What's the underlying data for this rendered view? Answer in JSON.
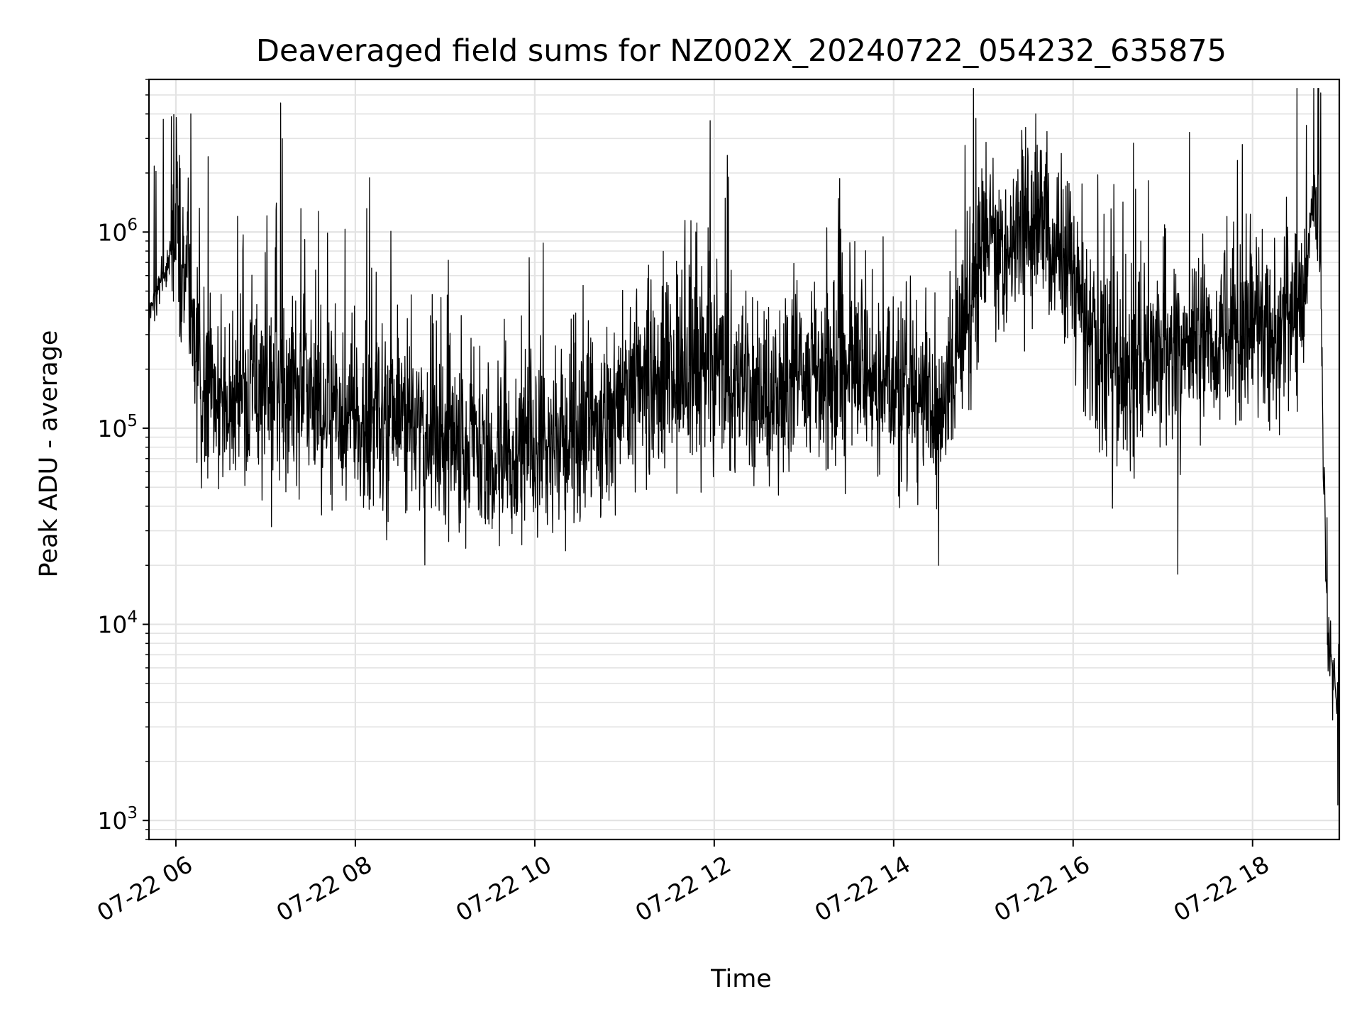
{
  "chart_data": {
    "type": "line",
    "title": "Deaveraged field sums for NZ002X_20240722_054232_635875",
    "xlabel": "Time",
    "ylabel": "Peak ADU - average",
    "x_scale": "time",
    "y_scale": "log",
    "xlim": [
      "2024-07-22T05:42:00",
      "2024-07-22T18:58:00"
    ],
    "ylim": [
      800,
      6000000
    ],
    "grid": true,
    "legend": "none",
    "line_color": "#000000",
    "x_ticks": [
      {
        "value": "2024-07-22T06:00:00",
        "label": "07-22 06"
      },
      {
        "value": "2024-07-22T08:00:00",
        "label": "07-22 08"
      },
      {
        "value": "2024-07-22T10:00:00",
        "label": "07-22 10"
      },
      {
        "value": "2024-07-22T12:00:00",
        "label": "07-22 12"
      },
      {
        "value": "2024-07-22T14:00:00",
        "label": "07-22 14"
      },
      {
        "value": "2024-07-22T16:00:00",
        "label": "07-22 16"
      },
      {
        "value": "2024-07-22T18:00:00",
        "label": "07-22 18"
      }
    ],
    "y_ticks": [
      {
        "value": 1000,
        "base": "10",
        "exp": "3"
      },
      {
        "value": 10000,
        "base": "10",
        "exp": "4"
      },
      {
        "value": 100000,
        "base": "10",
        "exp": "5"
      },
      {
        "value": 1000000,
        "base": "10",
        "exp": "6"
      }
    ],
    "series": [
      {
        "x": [
          "2024-07-22T05:42:00",
          "2024-07-22T05:50:00",
          "2024-07-22T05:55:00",
          "2024-07-22T06:00:00",
          "2024-07-22T06:05:00",
          "2024-07-22T06:10:00",
          "2024-07-22T06:15:00",
          "2024-07-22T06:20:00",
          "2024-07-22T06:30:00",
          "2024-07-22T06:45:00",
          "2024-07-22T07:00:00",
          "2024-07-22T07:20:00",
          "2024-07-22T07:40:00",
          "2024-07-22T08:00:00",
          "2024-07-22T08:30:00",
          "2024-07-22T09:00:00",
          "2024-07-22T09:30:00",
          "2024-07-22T10:00:00",
          "2024-07-22T10:30:00",
          "2024-07-22T11:00:00",
          "2024-07-22T11:30:00",
          "2024-07-22T12:00:00",
          "2024-07-22T12:30:00",
          "2024-07-22T13:00:00",
          "2024-07-22T13:30:00",
          "2024-07-22T14:00:00",
          "2024-07-22T14:30:00",
          "2024-07-22T14:50:00",
          "2024-07-22T15:00:00",
          "2024-07-22T15:20:00",
          "2024-07-22T15:40:00",
          "2024-07-22T16:00:00",
          "2024-07-22T16:15:00",
          "2024-07-22T16:30:00",
          "2024-07-22T16:45:00",
          "2024-07-22T17:00:00",
          "2024-07-22T17:30:00",
          "2024-07-22T18:00:00",
          "2024-07-22T18:20:00",
          "2024-07-22T18:35:00",
          "2024-07-22T18:40:00",
          "2024-07-22T18:45:00",
          "2024-07-22T18:48:00",
          "2024-07-22T18:50:00",
          "2024-07-22T18:53:00",
          "2024-07-22T18:56:00",
          "2024-07-22T18:58:00"
        ],
        "y": [
          400000,
          550000,
          700000,
          1100000,
          700000,
          450000,
          180000,
          160000,
          150000,
          140000,
          150000,
          160000,
          120000,
          110000,
          120000,
          85000,
          75000,
          80000,
          90000,
          130000,
          170000,
          200000,
          160000,
          180000,
          190000,
          170000,
          120000,
          400000,
          800000,
          1000000,
          1100000,
          600000,
          220000,
          180000,
          200000,
          250000,
          300000,
          330000,
          320000,
          400000,
          1500000,
          800000,
          50000,
          9000,
          6000,
          5000,
          6000
        ]
      }
    ],
    "annotation_peaks": {
      "x": [
        "2024-07-22T06:10:00",
        "2024-07-22T14:55:00",
        "2024-07-22T15:35:00",
        "2024-07-22T18:36:00",
        "2024-07-22T18:57:00",
        "2024-07-22T14:30:00",
        "2024-07-22T17:10:00"
      ],
      "y": [
        4000000,
        3800000,
        4000000,
        3500000,
        1200,
        20000,
        18000
      ]
    }
  }
}
